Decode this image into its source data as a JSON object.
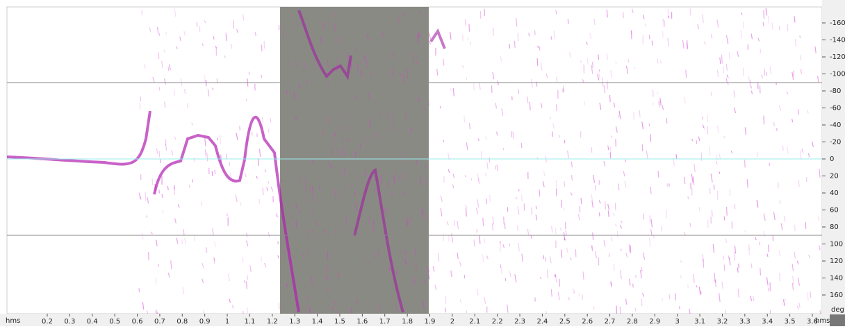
{
  "x_axis": {
    "unit_left": "hms",
    "ticks": [
      0.2,
      0.3,
      0.4,
      0.5,
      0.6,
      0.7,
      0.8,
      0.9,
      1.0,
      1.1,
      1.2,
      1.3,
      1.4,
      1.5,
      1.6,
      1.7,
      1.8,
      1.9,
      2.0,
      2.1,
      2.2,
      2.3,
      2.4,
      2.5,
      2.6,
      2.7,
      2.8,
      2.9,
      3.0,
      3.1,
      3.2,
      3.3,
      3.4,
      3.5,
      3.6
    ],
    "unit_right": "hms"
  },
  "y_axis": {
    "ticks": [
      -160,
      -140,
      -120,
      -100,
      -80,
      -60,
      -40,
      -20,
      0,
      20,
      40,
      60,
      80,
      100,
      120,
      140,
      160
    ],
    "unit": "deg"
  }
}
